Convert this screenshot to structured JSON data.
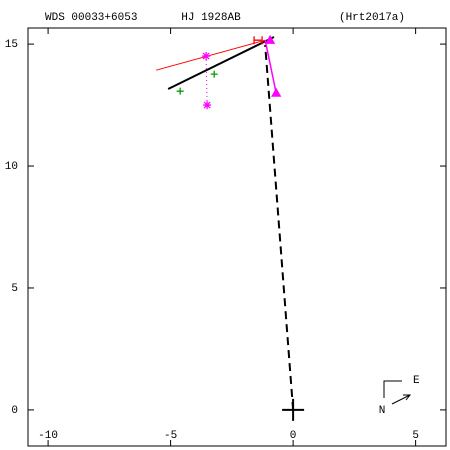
{
  "chart_data": {
    "type": "scatter",
    "left_title": "WDS 00033+6053",
    "title": "HJ 1928AB",
    "right_title": "(Hrt2017a)",
    "compass": {
      "east": "E",
      "north": "N"
    },
    "xlim": [
      -10.82,
      6.24
    ],
    "ylim": [
      -1.48,
      15.66
    ],
    "xticks": [
      -10,
      -5,
      0,
      5
    ],
    "yticks": [
      0,
      5,
      10,
      15
    ],
    "series": [
      {
        "kind": "line",
        "color": "#000000",
        "style": "dashed",
        "width": 2,
        "x": [
          0,
          -1.14
        ],
        "y": [
          0,
          14.96
        ]
      },
      {
        "kind": "line",
        "color": "#000000",
        "style": "solid",
        "width": 2,
        "x": [
          -5.1,
          -0.78
        ],
        "y": [
          13.16,
          15.29
        ]
      },
      {
        "kind": "line",
        "color": "#ff0000",
        "style": "solid",
        "width": 1,
        "x": [
          -5.59,
          -1.14
        ],
        "y": [
          13.93,
          15.16
        ]
      },
      {
        "kind": "line",
        "color": "#ff00ff",
        "style": "solid",
        "width": 1.5,
        "x": [
          -1.14,
          -0.69
        ],
        "y": [
          15.16,
          12.99
        ]
      },
      {
        "kind": "line",
        "color": "#ff00ff",
        "style": "dotted",
        "width": 1,
        "x": [
          -3.55,
          -3.51
        ],
        "y": [
          14.51,
          12.5
        ]
      },
      {
        "kind": "marker",
        "marker": "asterisk",
        "color": "#ff00ff",
        "x": [
          -3.55,
          -3.51
        ],
        "y": [
          14.51,
          12.5
        ]
      },
      {
        "kind": "marker",
        "marker": "plus",
        "color": "#00a000",
        "x": [
          -4.61,
          -3.22
        ],
        "y": [
          13.07,
          13.77
        ]
      },
      {
        "kind": "marker",
        "marker": "triangle",
        "color": "#ff00ff",
        "x": [
          -0.94,
          -0.69
        ],
        "y": [
          15.16,
          12.99
        ]
      },
      {
        "kind": "marker",
        "marker": "h",
        "color": "#ff0000",
        "x": [
          -1.43
        ],
        "y": [
          15.16
        ]
      },
      {
        "kind": "marker",
        "marker": "bigplus",
        "color": "#000000",
        "x": [
          0
        ],
        "y": [
          0
        ]
      }
    ]
  }
}
